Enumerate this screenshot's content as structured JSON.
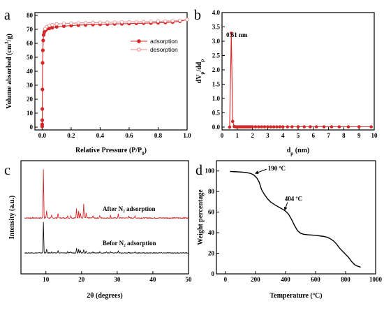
{
  "chart_data": [
    {
      "panel": "a",
      "type": "line",
      "xlabel": "Relative Pressure (P/P0)",
      "ylabel": "Volume absorbed (cm3/g)",
      "xlim": [
        -0.05,
        1.0
      ],
      "ylim": [
        -2,
        82
      ],
      "xticks": [
        "0.0",
        "0.2",
        "0.4",
        "0.6",
        "0.8",
        "1.0"
      ],
      "yticks": [
        "0",
        "10",
        "20",
        "30",
        "40",
        "50",
        "60",
        "70",
        "80"
      ],
      "legend": "right",
      "series": [
        {
          "name": "adsorption",
          "color": "#d62728",
          "marker": "filled-circle",
          "x": [
            0.0,
            0.0002,
            0.0005,
            0.001,
            0.002,
            0.003,
            0.005,
            0.007,
            0.01,
            0.015,
            0.02,
            0.03,
            0.05,
            0.07,
            0.1,
            0.15,
            0.2,
            0.25,
            0.3,
            0.35,
            0.4,
            0.45,
            0.5,
            0.55,
            0.6,
            0.65,
            0.7,
            0.75,
            0.8,
            0.85,
            0.9,
            0.95,
            1.0
          ],
          "y": [
            0.5,
            2,
            5,
            13,
            27,
            46,
            55,
            62,
            66,
            68,
            69,
            70,
            70.7,
            71.2,
            71.8,
            72.3,
            72.7,
            73,
            73.2,
            73.4,
            73.6,
            73.7,
            73.9,
            74,
            74.1,
            74.3,
            74.4,
            74.5,
            74.7,
            74.9,
            75.2,
            75.8,
            77
          ]
        },
        {
          "name": "desorption",
          "color": "#e88a8a",
          "marker": "open-circle",
          "x": [
            1.0,
            0.95,
            0.9,
            0.85,
            0.8,
            0.75,
            0.7,
            0.65,
            0.6,
            0.55,
            0.5,
            0.45,
            0.4,
            0.35,
            0.3,
            0.25,
            0.2,
            0.15,
            0.1,
            0.07,
            0.05,
            0.03,
            0.02
          ],
          "y": [
            77,
            76.4,
            76.1,
            75.9,
            75.8,
            75.6,
            75.5,
            75.4,
            75.3,
            75.2,
            75.1,
            75,
            74.9,
            74.8,
            74.7,
            74.6,
            74.4,
            74.2,
            73.8,
            73.3,
            72.8,
            71.9,
            70.5
          ]
        }
      ]
    },
    {
      "panel": "b",
      "type": "line",
      "xlabel": "dp (nm)",
      "ylabel": "dVp/ddp",
      "xlim": [
        0,
        10
      ],
      "ylim": [
        -0.1,
        4.0
      ],
      "xticks": [
        "0",
        "1",
        "2",
        "3",
        "4",
        "5",
        "6",
        "7",
        "8",
        "9",
        "10"
      ],
      "yticks": [
        "0.0",
        "0.5",
        "1.0",
        "1.5",
        "2.0",
        "2.5",
        "3.0",
        "3.5",
        "4.0"
      ],
      "annotation": "0.61 nm",
      "series": [
        {
          "color": "#d62728",
          "marker": "filled-circle",
          "x": [
            0.5,
            0.61,
            0.7,
            0.8,
            0.9,
            1.0,
            1.1,
            1.2,
            1.3,
            1.4,
            1.5,
            1.6,
            1.7,
            1.8,
            1.9,
            2.0,
            2.2,
            2.4,
            2.6,
            2.8,
            3.0,
            3.2,
            3.4,
            3.6,
            3.8,
            4.0,
            4.3,
            4.6,
            5.0,
            5.4,
            5.8,
            6.2,
            6.7,
            7.2,
            7.7,
            8.3,
            9.0,
            9.8
          ],
          "y": [
            0.0,
            3.28,
            0.2,
            0.02,
            0.01,
            0.01,
            0.01,
            0.01,
            0.01,
            0.01,
            0.01,
            0.01,
            0.01,
            0.01,
            0.01,
            0.01,
            0.01,
            0.01,
            0.01,
            0.01,
            0.01,
            0.01,
            0.01,
            0.01,
            0.01,
            0.01,
            0.01,
            0.01,
            0.01,
            0.01,
            0.01,
            0.01,
            0.01,
            0.01,
            0.01,
            0.01,
            0.01,
            0.01
          ]
        }
      ]
    },
    {
      "panel": "c",
      "type": "line",
      "xlabel": "2θ (degrees)",
      "ylabel": "Intensity (a.u.)",
      "xlim": [
        3,
        50
      ],
      "xticks": [
        "10",
        "20",
        "30",
        "40",
        "50"
      ],
      "series": [
        {
          "name": "After N2 adsorption",
          "label": "After N₂ adsorption",
          "color": "#d62728",
          "peaks": [
            [
              9.3,
              1.0
            ],
            [
              10.2,
              0.15
            ],
            [
              11.6,
              0.05
            ],
            [
              13.4,
              0.1
            ],
            [
              16.1,
              0.05
            ],
            [
              17.0,
              0.05
            ],
            [
              18.6,
              0.2
            ],
            [
              19.2,
              0.15
            ],
            [
              19.7,
              0.1
            ],
            [
              20.6,
              0.28
            ],
            [
              21.3,
              0.1
            ],
            [
              23.2,
              0.05
            ],
            [
              25.1,
              0.05
            ],
            [
              28.1,
              0.05
            ],
            [
              30.3,
              0.08
            ],
            [
              33.2,
              0.04
            ],
            [
              35.0,
              0.04
            ]
          ]
        },
        {
          "name": "Befor N2 adsorption",
          "label": "Befor N₂ adsorption",
          "color": "#111111",
          "peaks": [
            [
              9.3,
              1.0
            ],
            [
              10.2,
              0.12
            ],
            [
              11.6,
              0.04
            ],
            [
              13.4,
              0.08
            ],
            [
              16.1,
              0.04
            ],
            [
              17.0,
              0.04
            ],
            [
              18.6,
              0.16
            ],
            [
              19.2,
              0.12
            ],
            [
              19.7,
              0.08
            ],
            [
              20.6,
              0.1
            ],
            [
              21.3,
              0.06
            ],
            [
              23.2,
              0.04
            ],
            [
              25.1,
              0.04
            ],
            [
              27.0,
              0.03
            ],
            [
              28.1,
              0.04
            ],
            [
              30.3,
              0.06
            ],
            [
              33.2,
              0.03
            ],
            [
              35.0,
              0.03
            ]
          ]
        }
      ]
    },
    {
      "panel": "d",
      "type": "line",
      "xlabel": "Temperature (ºC)",
      "ylabel": "Weight percentage",
      "xlim": [
        -60,
        1000
      ],
      "ylim": [
        0,
        110
      ],
      "xticks": [
        "0",
        "200",
        "400",
        "600",
        "800",
        "1000"
      ],
      "yticks": [
        "0",
        "20",
        "40",
        "60",
        "80",
        "100"
      ],
      "annotations": [
        {
          "text": "190 ºC",
          "x": 190,
          "y": 97
        },
        {
          "text": "404 ºC",
          "x": 404,
          "y": 60
        }
      ],
      "series": [
        {
          "color": "#000000",
          "x": [
            30,
            60,
            100,
            140,
            170,
            190,
            210,
            225,
            240,
            260,
            280,
            300,
            330,
            360,
            390,
            404,
            420,
            440,
            460,
            480,
            500,
            520,
            550,
            600,
            650,
            680,
            700,
            720,
            740,
            760,
            780,
            800,
            820,
            840,
            860,
            880,
            900
          ],
          "y": [
            99.5,
            99.3,
            99,
            98.5,
            97.5,
            96,
            93,
            89,
            82,
            77,
            73,
            70,
            67,
            64.5,
            62,
            60.5,
            58,
            53,
            47,
            42,
            39.5,
            38.5,
            38,
            37.5,
            36.5,
            35.5,
            34,
            32,
            29,
            25,
            22,
            19,
            16,
            12,
            9,
            7.5,
            6.5
          ]
        }
      ]
    }
  ]
}
